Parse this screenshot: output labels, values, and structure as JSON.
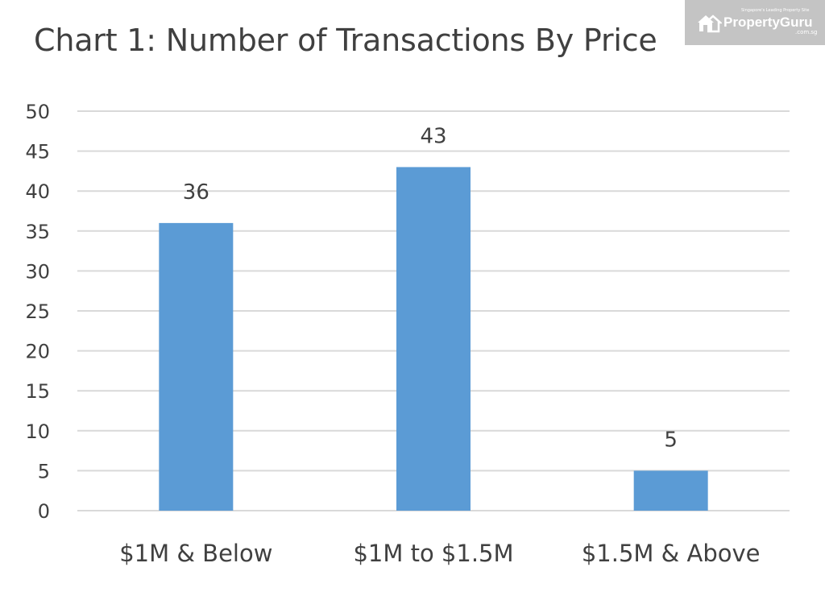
{
  "chart_data": {
    "type": "bar",
    "title": "Chart 1: Number of Transactions By Price",
    "categories": [
      "$1M & Below",
      "$1M to $1.5M",
      "$1.5M & Above"
    ],
    "values": [
      36,
      43,
      5
    ],
    "data_labels": [
      "36",
      "43",
      "5"
    ],
    "ylim": [
      0,
      50
    ],
    "yticks": [
      0,
      5,
      10,
      15,
      20,
      25,
      30,
      35,
      40,
      45,
      50
    ],
    "xlabel": "",
    "ylabel": "",
    "grid": true,
    "legend": "none",
    "bar_color": "#5b9bd5",
    "grid_color": "#d9d9d9"
  },
  "watermark": {
    "tagline": "Singapore's Leading Property Site",
    "brand": "PropertyGuru",
    "domain": ".com.sg",
    "icon": "house-icon",
    "background": "#c4c4c4"
  }
}
